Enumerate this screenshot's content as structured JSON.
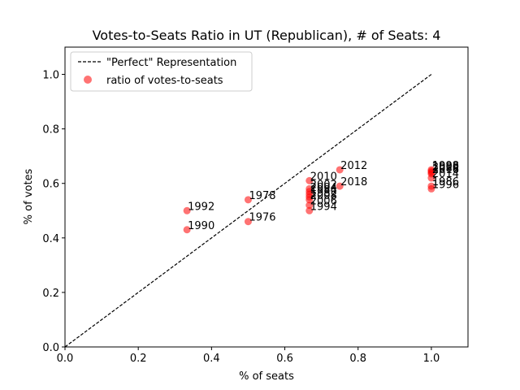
{
  "chart_data": {
    "type": "scatter",
    "title": "Votes-to-Seats Ratio in UT (Republican), # of Seats: 4",
    "xlabel": "% of seats",
    "ylabel": "% of votes",
    "xlim": [
      0.0,
      1.1
    ],
    "ylim": [
      0.0,
      1.1
    ],
    "xticks": [
      "0.0",
      "0.2",
      "0.4",
      "0.6",
      "0.8",
      "1.0"
    ],
    "yticks": [
      "0.0",
      "0.2",
      "0.4",
      "0.6",
      "0.8",
      "1.0"
    ],
    "grid": false,
    "legend_position": "top-left",
    "reference_line": {
      "name": "\"Perfect\" Representation",
      "x": [
        0,
        1
      ],
      "y": [
        0,
        1
      ],
      "color": "#000000",
      "style": "dashed"
    },
    "series": [
      {
        "name": "ratio of votes-to-seats",
        "color": "#ff0000",
        "points": [
          {
            "x": 0.333,
            "y": 0.43,
            "label": "1990"
          },
          {
            "x": 0.333,
            "y": 0.5,
            "label": "1992"
          },
          {
            "x": 0.5,
            "y": 0.46,
            "label": "1976"
          },
          {
            "x": 0.5,
            "y": 0.54,
            "label": "1978"
          },
          {
            "x": 0.667,
            "y": 0.61,
            "label": "2010"
          },
          {
            "x": 0.667,
            "y": 0.58,
            "label": "2002"
          },
          {
            "x": 0.667,
            "y": 0.57,
            "label": "2004"
          },
          {
            "x": 0.667,
            "y": 0.56,
            "label": "1984"
          },
          {
            "x": 0.667,
            "y": 0.55,
            "label": "1982"
          },
          {
            "x": 0.667,
            "y": 0.54,
            "label": "2008"
          },
          {
            "x": 0.667,
            "y": 0.52,
            "label": "2006"
          },
          {
            "x": 0.667,
            "y": 0.5,
            "label": "1994"
          },
          {
            "x": 0.75,
            "y": 0.65,
            "label": "2012"
          },
          {
            "x": 0.75,
            "y": 0.59,
            "label": "2018"
          },
          {
            "x": 1.0,
            "y": 0.65,
            "label": "1998"
          },
          {
            "x": 1.0,
            "y": 0.645,
            "label": "2000"
          },
          {
            "x": 1.0,
            "y": 0.64,
            "label": "1988"
          },
          {
            "x": 1.0,
            "y": 0.635,
            "label": "2016"
          },
          {
            "x": 1.0,
            "y": 0.62,
            "label": "2014"
          },
          {
            "x": 1.0,
            "y": 0.59,
            "label": "1986"
          },
          {
            "x": 1.0,
            "y": 0.58,
            "label": "1996"
          }
        ]
      }
    ]
  }
}
